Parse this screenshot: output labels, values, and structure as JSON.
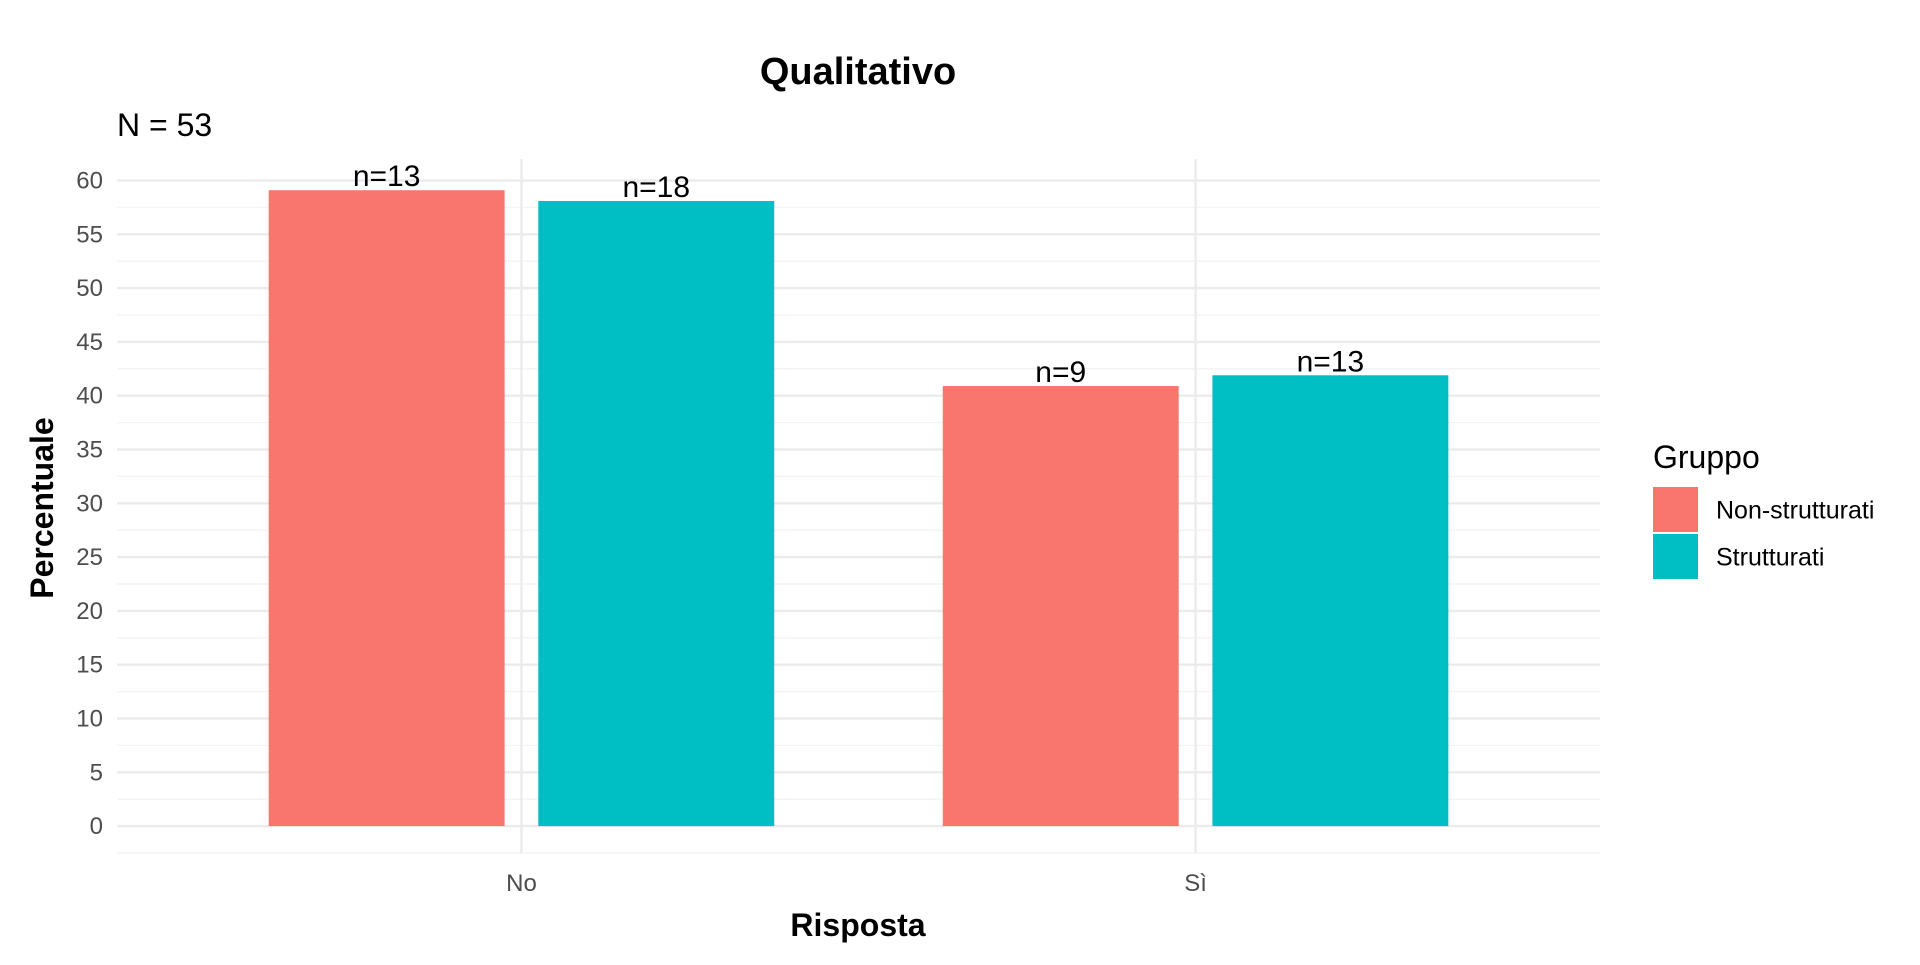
{
  "chart_data": {
    "type": "bar",
    "title": "Qualitativo",
    "subtitle": "N = 53",
    "xlabel": "Risposta",
    "ylabel": "Percentuale",
    "categories": [
      "No",
      "Sì"
    ],
    "series": [
      {
        "name": "Non-strutturati",
        "color": "#F8766D",
        "values": [
          59.1,
          40.9
        ],
        "labels": [
          "n=13",
          "n=9"
        ]
      },
      {
        "name": "Strutturati",
        "color": "#00BFC4",
        "values": [
          58.1,
          41.9
        ],
        "labels": [
          "n=18",
          "n=13"
        ]
      }
    ],
    "ylim": [
      -2.5,
      62
    ],
    "yticks": [
      0,
      5,
      10,
      15,
      20,
      25,
      30,
      35,
      40,
      45,
      50,
      55,
      60
    ],
    "grid": true,
    "legend": {
      "title": "Gruppo",
      "position": "right"
    }
  }
}
